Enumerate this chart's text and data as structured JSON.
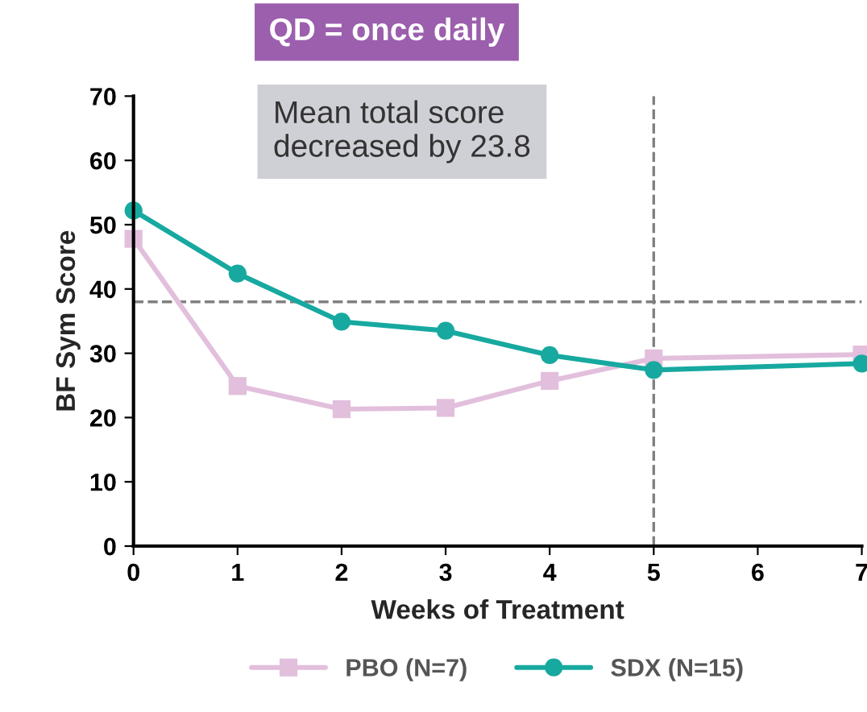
{
  "chart_data": {
    "type": "line",
    "xlabel": "Weeks of Treatment",
    "ylabel": "BF Sym Score",
    "x": [
      0,
      1,
      2,
      3,
      4,
      5,
      7
    ],
    "series": [
      {
        "name": "PBO (N=7)",
        "color": "#e2bfdc",
        "values": [
          47.8,
          24.9,
          21.3,
          21.5,
          25.7,
          29.2,
          29.8
        ],
        "marker": "square"
      },
      {
        "name": "SDX (N=15)",
        "color": "#17a9a0",
        "values": [
          52.2,
          42.4,
          34.9,
          33.5,
          29.7,
          27.4,
          28.4
        ],
        "marker": "circle"
      }
    ],
    "xlim": [
      0,
      7
    ],
    "xticks": [
      0,
      1,
      2,
      3,
      4,
      5,
      6,
      7
    ],
    "ylim": [
      0,
      70
    ],
    "yticks": [
      0,
      10,
      20,
      30,
      40,
      50,
      60,
      70
    ],
    "ref_lines": [
      {
        "axis": "y",
        "value": 38,
        "color": "#808080",
        "line_style": "dashed"
      },
      {
        "axis": "x",
        "value": 5,
        "color": "#808080",
        "line_style": "dashed"
      }
    ],
    "annotations": [
      "QD = once daily",
      "Mean total score\ndecreased by 23.8"
    ],
    "grid": false,
    "legend": "bottom",
    "line_style": "solid"
  }
}
